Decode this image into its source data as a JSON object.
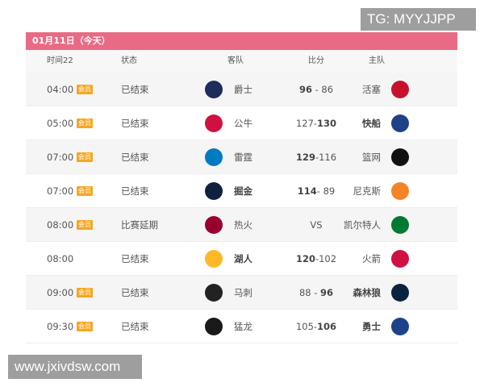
{
  "watermarks": {
    "top": "TG: MYYJJPP",
    "bottom": "www.jxivdsw.com"
  },
  "date_header": "01月11日（今天）",
  "columns": {
    "time": "时间22",
    "status": "状态",
    "away": "客队",
    "score": "比分",
    "home": "主队"
  },
  "badge_label": "会员",
  "games": [
    {
      "time": "04:00",
      "badge": true,
      "status": "已结束",
      "away": "爵士",
      "away_bold": false,
      "away_logo": "jazz-logo",
      "away_color": "#1d2e5c",
      "s1": "96",
      "sep": " - ",
      "s2": "86",
      "win": 1,
      "home": "活塞",
      "home_bold": false,
      "home_logo": "pistons-logo",
      "home_color": "#c8102e"
    },
    {
      "time": "05:00",
      "badge": true,
      "status": "已结束",
      "away": "公牛",
      "away_bold": false,
      "away_logo": "bulls-logo",
      "away_color": "#ce1141",
      "s1": "127",
      "sep": "-",
      "s2": "130",
      "win": 2,
      "home": "快船",
      "home_bold": true,
      "home_logo": "clippers-logo",
      "home_color": "#1d428a"
    },
    {
      "time": "07:00",
      "badge": true,
      "status": "已结束",
      "away": "雷霆",
      "away_bold": false,
      "away_logo": "thunder-logo",
      "away_color": "#007ac1",
      "s1": "129",
      "sep": "-",
      "s2": "116",
      "win": 1,
      "home": "篮网",
      "home_bold": false,
      "home_logo": "nets-logo",
      "home_color": "#111111"
    },
    {
      "time": "07:00",
      "badge": true,
      "status": "已结束",
      "away": "掘金",
      "away_bold": true,
      "away_logo": "nuggets-logo",
      "away_color": "#0e2240",
      "s1": "114",
      "sep": "- ",
      "s2": "89",
      "win": 1,
      "home": "尼克斯",
      "home_bold": false,
      "home_logo": "knicks-logo",
      "home_color": "#f58426"
    },
    {
      "time": "08:00",
      "badge": true,
      "status": "比赛延期",
      "away": "热火",
      "away_bold": false,
      "away_logo": "heat-logo",
      "away_color": "#98002e",
      "s1": "VS",
      "sep": "",
      "s2": "",
      "win": 0,
      "home": "凯尔特人",
      "home_bold": false,
      "home_logo": "celtics-logo",
      "home_color": "#007a33"
    },
    {
      "time": "08:00",
      "badge": false,
      "status": "已结束",
      "away": "湖人",
      "away_bold": true,
      "away_logo": "lakers-logo",
      "away_color": "#fdb927",
      "s1": "120",
      "sep": "-",
      "s2": "102",
      "win": 1,
      "home": "火箭",
      "home_bold": false,
      "home_logo": "rockets-logo",
      "home_color": "#ce1141"
    },
    {
      "time": "09:00",
      "badge": true,
      "status": "已结束",
      "away": "马刺",
      "away_bold": false,
      "away_logo": "spurs-logo",
      "away_color": "#222222",
      "s1": "88",
      "sep": " - ",
      "s2": "96",
      "win": 2,
      "home": "森林狼",
      "home_bold": true,
      "home_logo": "timberwolves-logo",
      "home_color": "#0c2340"
    },
    {
      "time": "09:30",
      "badge": true,
      "status": "已结束",
      "away": "猛龙",
      "away_bold": false,
      "away_logo": "raptors-logo",
      "away_color": "#1a1a1a",
      "s1": "105",
      "sep": "-",
      "s2": "106",
      "win": 2,
      "home": "勇士",
      "home_bold": true,
      "home_logo": "warriors-logo",
      "home_color": "#1d428a"
    }
  ]
}
